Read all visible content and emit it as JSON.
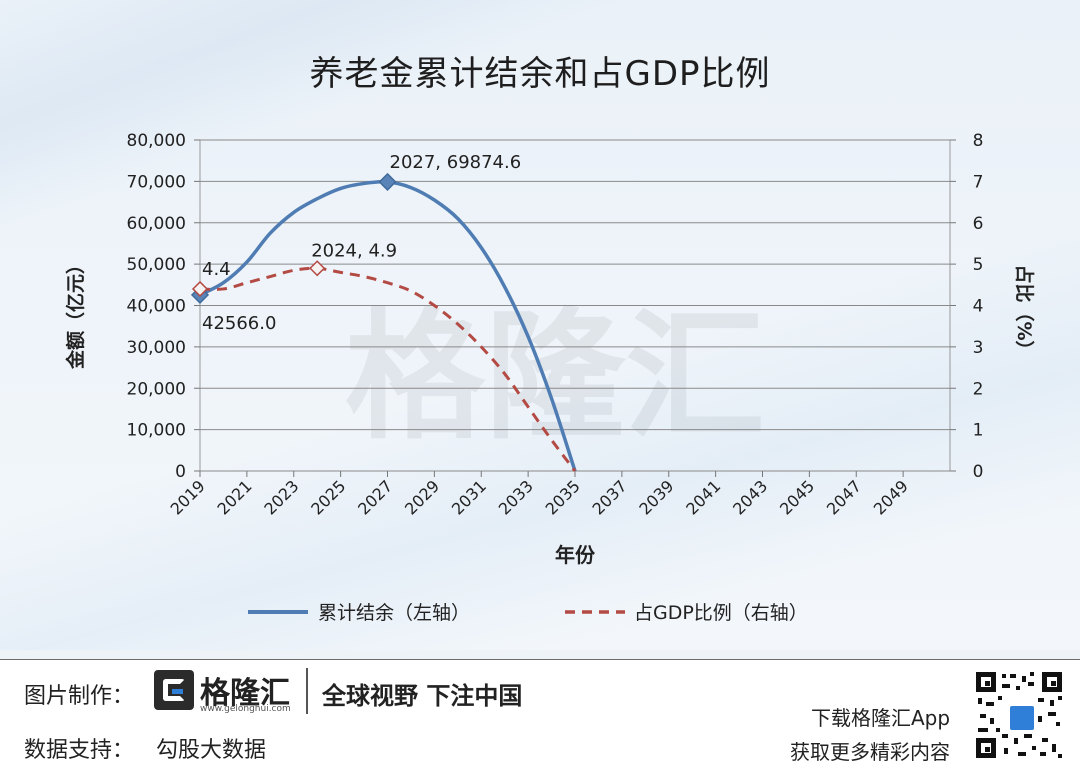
{
  "header": {
    "title": "养老金累计结余和占GDP比例"
  },
  "chart_data": {
    "type": "line",
    "title": "养老金累计结余和占GDP比例",
    "xlabel": "年份",
    "ylabel_left": "金额（亿元）",
    "ylabel_right": "占比（%）",
    "x_ticks": [
      "2019",
      "2021",
      "2023",
      "2025",
      "2027",
      "2029",
      "2031",
      "2033",
      "2035",
      "2037",
      "2039",
      "2041",
      "2043",
      "2045",
      "2047",
      "2049"
    ],
    "xlim": [
      2019,
      2051
    ],
    "y_left_ticks": [
      "0",
      "10,000",
      "20,000",
      "30,000",
      "40,000",
      "50,000",
      "60,000",
      "70,000",
      "80,000"
    ],
    "y_left_lim": [
      0,
      80000
    ],
    "y_right_ticks": [
      "0",
      "1",
      "2",
      "3",
      "4",
      "5",
      "6",
      "7",
      "8"
    ],
    "y_right_lim": [
      0,
      8
    ],
    "grid": true,
    "legend": "bottom",
    "series": [
      {
        "name": "累计结余（左轴）",
        "axis": "left",
        "style": "solid",
        "color": "#4f7db3",
        "x": [
          2019,
          2020,
          2021,
          2022,
          2023,
          2024,
          2025,
          2026,
          2027,
          2028,
          2029,
          2030,
          2031,
          2032,
          2033,
          2034,
          2035
        ],
        "y": [
          42566.0,
          45500,
          50500,
          57500,
          62500,
          65800,
          68300,
          69500,
          69874.6,
          68500,
          65500,
          61000,
          54000,
          44500,
          32500,
          17500,
          0
        ]
      },
      {
        "name": "占GDP比例（右轴）",
        "axis": "right",
        "style": "dashed",
        "color": "#b34a44",
        "x": [
          2019,
          2020,
          2021,
          2022,
          2023,
          2024,
          2025,
          2026,
          2027,
          2028,
          2029,
          2030,
          2031,
          2032,
          2033,
          2034,
          2035
        ],
        "y": [
          4.4,
          4.4,
          4.55,
          4.7,
          4.85,
          4.9,
          4.8,
          4.7,
          4.55,
          4.35,
          4.0,
          3.55,
          3.0,
          2.35,
          1.55,
          0.75,
          0
        ]
      }
    ],
    "annotations": [
      {
        "text": "2027, 69874.6",
        "x": 2027,
        "y": 69874.6,
        "axis": "left"
      },
      {
        "text": "42566.0",
        "x": 2019,
        "y": 42566.0,
        "axis": "left"
      },
      {
        "text": "2024, 4.9",
        "x": 2024,
        "y": 4.9,
        "axis": "right"
      },
      {
        "text": "4.4",
        "x": 2019,
        "y": 4.4,
        "axis": "right"
      }
    ],
    "markers": [
      {
        "series": 0,
        "x": 2019,
        "y": 42566.0
      },
      {
        "series": 0,
        "x": 2027,
        "y": 69874.6
      },
      {
        "series": 1,
        "x": 2019,
        "y": 4.4
      },
      {
        "series": 1,
        "x": 2024,
        "y": 4.9
      }
    ],
    "watermark": "格隆汇"
  },
  "footer": {
    "image_credit_label": "图片制作：",
    "brand_name": "格隆汇",
    "brand_url": "www.gelonghui.com",
    "slogan": "全球视野 下注中国",
    "data_support_label": "数据支持：",
    "data_source": "勾股大数据",
    "download_text": "下载格隆汇App",
    "more_text": "获取更多精彩内容"
  }
}
